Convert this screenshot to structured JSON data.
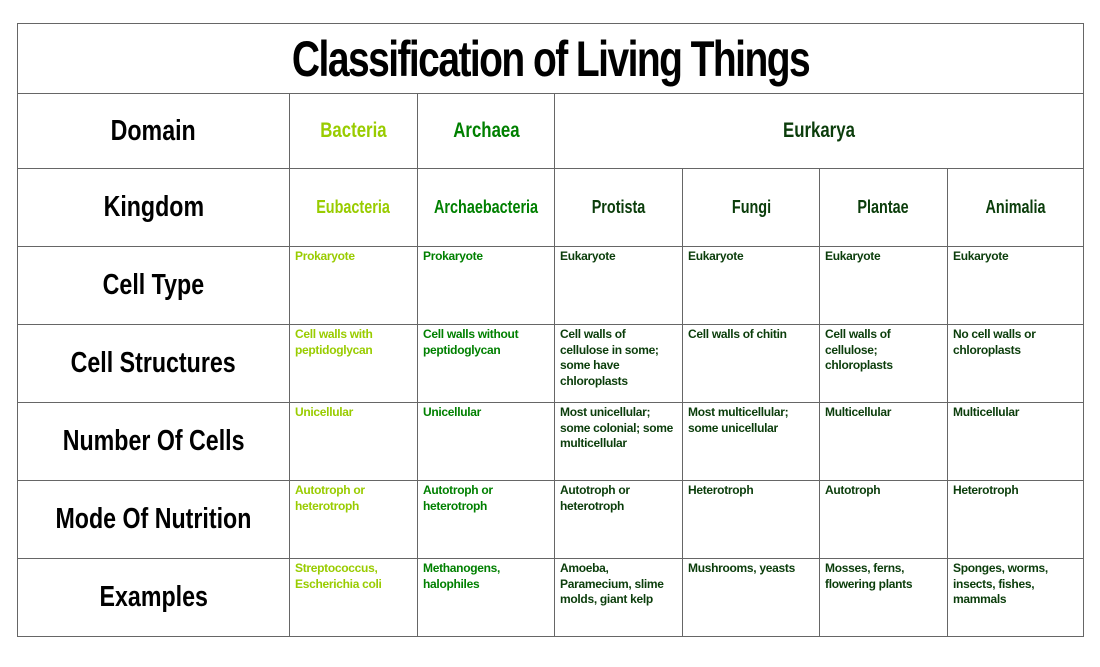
{
  "title": "Classification of Living Things",
  "colors": {
    "bacteria": "#99cc00",
    "archaea": "#008000",
    "eukarya": "#0b3d0b",
    "text": "#000000",
    "border": "#666666"
  },
  "domain_row": {
    "label": "Domain",
    "values": [
      {
        "name": "Bacteria",
        "span": 1,
        "color": "c0"
      },
      {
        "name": "Archaea",
        "span": 1,
        "color": "c1"
      },
      {
        "name": "Eurkarya",
        "span": 4,
        "color": "c2"
      }
    ]
  },
  "kingdom_row": {
    "label": "Kingdom",
    "values": [
      "Eubacteria",
      "Archaebacteria",
      "Protista",
      "Fungi",
      "Plantae",
      "Animalia"
    ]
  },
  "rows": [
    {
      "label": "Cell Type",
      "cells": [
        "Prokaryote",
        "Prokaryote",
        "Eukaryote",
        "Eukaryote",
        "Eukaryote",
        "Eukaryote"
      ]
    },
    {
      "label": "Cell Structures",
      "cells": [
        "Cell walls with peptidoglycan",
        "Cell walls without peptidoglycan",
        "Cell walls of cellulose in some; some have chloroplasts",
        "Cell walls of chitin",
        "Cell walls of cellulose; chloroplasts",
        "No cell walls or chloroplasts"
      ]
    },
    {
      "label": "Number Of Cells",
      "cells": [
        "Unicellular",
        "Unicellular",
        "Most unicellular; some colonial; some multicellular",
        "Most multicellular; some unicellular",
        "Multicellular",
        "Multicellular"
      ]
    },
    {
      "label": "Mode Of Nutrition",
      "cells": [
        "Autotroph or heterotroph",
        "Autotroph or heterotroph",
        "Autotroph or heterotroph",
        "Heterotroph",
        "Autotroph",
        "Heterotroph"
      ]
    },
    {
      "label": "Examples",
      "cells": [
        "Streptococcus, Escherichia coli",
        "Methanogens, halophiles",
        "Amoeba, Paramecium, slime molds, giant kelp",
        "Mushrooms, yeasts",
        "Mosses, ferns, flowering plants",
        "Sponges, worms, insects, fishes, mammals"
      ]
    }
  ]
}
